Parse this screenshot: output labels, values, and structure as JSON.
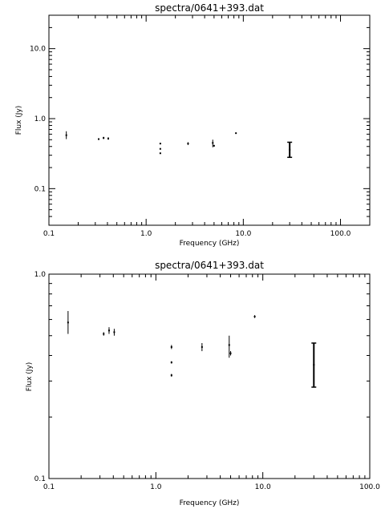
{
  "chart_data": [
    {
      "type": "scatter",
      "title": "spectra/0641+393.dat",
      "xlabel": "Frequency (GHz)",
      "ylabel": "Flux (Jy)",
      "xscale": "log",
      "yscale": "log",
      "xlim": [
        0.1,
        200
      ],
      "ylim": [
        0.03,
        30
      ],
      "xticks": [
        {
          "value": 0.1,
          "label": "0.1"
        },
        {
          "value": 1,
          "label": "1.0"
        },
        {
          "value": 10,
          "label": "10.0"
        },
        {
          "value": 100,
          "label": "100.0"
        }
      ],
      "yticks": [
        {
          "value": 0.1,
          "label": "0.1"
        },
        {
          "value": 1,
          "label": "1.0"
        },
        {
          "value": 10,
          "label": "10.0"
        }
      ],
      "points": [
        {
          "x": 0.151,
          "y": 0.58,
          "ylo": 0.51,
          "yhi": 0.66
        },
        {
          "x": 0.325,
          "y": 0.51,
          "ylo": 0.5,
          "yhi": 0.52
        },
        {
          "x": 0.365,
          "y": 0.53,
          "ylo": 0.51,
          "yhi": 0.55
        },
        {
          "x": 0.408,
          "y": 0.52,
          "ylo": 0.5,
          "yhi": 0.54
        },
        {
          "x": 1.4,
          "y": 0.44,
          "ylo": 0.43,
          "yhi": 0.45
        },
        {
          "x": 1.4,
          "y": 0.37,
          "ylo": 0.365,
          "yhi": 0.375
        },
        {
          "x": 1.4,
          "y": 0.32,
          "ylo": 0.315,
          "yhi": 0.325
        },
        {
          "x": 2.7,
          "y": 0.44,
          "ylo": 0.42,
          "yhi": 0.46
        },
        {
          "x": 4.85,
          "y": 0.45,
          "ylo": 0.39,
          "yhi": 0.5
        },
        {
          "x": 5.0,
          "y": 0.41,
          "ylo": 0.4,
          "yhi": 0.42
        },
        {
          "x": 8.4,
          "y": 0.62,
          "ylo": 0.61,
          "yhi": 0.63
        },
        {
          "x": 30,
          "y": 0.36,
          "ylo": 0.28,
          "yhi": 0.46
        }
      ]
    },
    {
      "type": "scatter",
      "title": "spectra/0641+393.dat",
      "xlabel": "Frequency (GHz)",
      "ylabel": "Flux (Jy)",
      "xscale": "log",
      "yscale": "log",
      "xlim": [
        0.1,
        100
      ],
      "ylim": [
        0.1,
        1
      ],
      "xticks": [
        {
          "value": 0.1,
          "label": "0.1"
        },
        {
          "value": 1,
          "label": "1.0"
        },
        {
          "value": 10,
          "label": "10.0"
        },
        {
          "value": 100,
          "label": "100.0"
        }
      ],
      "yticks": [
        {
          "value": 0.1,
          "label": "0.1"
        },
        {
          "value": 1,
          "label": "1.0"
        }
      ],
      "points": [
        {
          "x": 0.151,
          "y": 0.58,
          "ylo": 0.51,
          "yhi": 0.66
        },
        {
          "x": 0.325,
          "y": 0.51,
          "ylo": 0.5,
          "yhi": 0.52
        },
        {
          "x": 0.365,
          "y": 0.53,
          "ylo": 0.51,
          "yhi": 0.55
        },
        {
          "x": 0.408,
          "y": 0.52,
          "ylo": 0.5,
          "yhi": 0.54
        },
        {
          "x": 1.4,
          "y": 0.44,
          "ylo": 0.43,
          "yhi": 0.45
        },
        {
          "x": 1.4,
          "y": 0.37,
          "ylo": 0.365,
          "yhi": 0.375
        },
        {
          "x": 1.4,
          "y": 0.32,
          "ylo": 0.315,
          "yhi": 0.325
        },
        {
          "x": 2.7,
          "y": 0.44,
          "ylo": 0.42,
          "yhi": 0.46
        },
        {
          "x": 4.85,
          "y": 0.45,
          "ylo": 0.39,
          "yhi": 0.5
        },
        {
          "x": 5.0,
          "y": 0.41,
          "ylo": 0.4,
          "yhi": 0.42
        },
        {
          "x": 8.4,
          "y": 0.62,
          "ylo": 0.61,
          "yhi": 0.63
        },
        {
          "x": 30,
          "y": 0.36,
          "ylo": 0.28,
          "yhi": 0.46
        }
      ]
    }
  ]
}
